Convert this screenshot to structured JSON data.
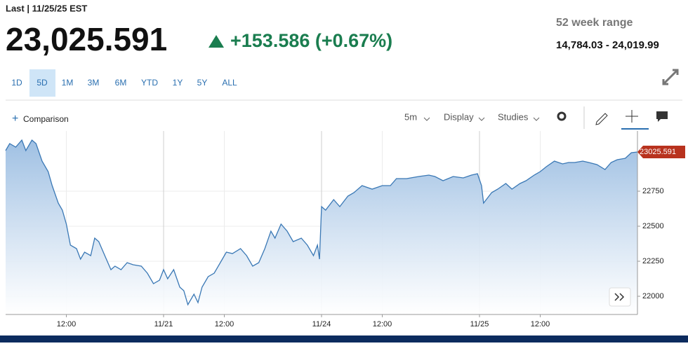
{
  "header": {
    "last": "Last | 11/25/25 EST",
    "price": "23,025.591",
    "change": "+153.586 (+0.67%)",
    "range_title": "52 week range",
    "range": "14,784.03 - 24,019.99"
  },
  "tabs": [
    "1D",
    "5D",
    "1M",
    "3M",
    "6M",
    "YTD",
    "1Y",
    "5Y",
    "ALL"
  ],
  "toolbar": {
    "comparison": "Comparison",
    "interval": "5m",
    "display": "Display",
    "studies": "Studies"
  },
  "price_tag": "23025.591",
  "chart_data": {
    "type": "line",
    "color": "#3a78b5",
    "grid": true,
    "x": [
      0,
      2,
      5,
      8,
      10,
      13,
      15,
      18,
      21,
      23,
      26,
      28,
      30,
      32,
      35,
      37,
      39,
      42,
      44,
      46,
      49,
      52,
      54,
      57,
      60,
      63,
      67,
      70,
      73,
      76,
      78,
      80,
      83,
      86,
      88,
      90,
      93,
      95,
      97,
      100,
      103,
      107,
      109,
      112,
      116,
      119,
      122,
      125,
      128,
      131,
      133,
      136,
      139,
      142,
      146,
      149,
      152,
      154,
      155,
      156,
      158,
      162,
      165,
      169,
      172,
      176,
      181,
      186,
      190,
      193,
      198,
      204,
      209,
      212,
      216,
      221,
      226,
      230,
      233,
      235,
      236,
      240,
      243,
      247,
      250,
      254,
      257,
      261,
      264,
      267,
      271,
      275,
      278,
      281,
      285,
      288,
      292,
      296,
      299,
      302,
      306,
      309,
      312
    ],
    "values": [
      23040,
      23090,
      23065,
      23115,
      23040,
      23115,
      23090,
      22965,
      22890,
      22790,
      22665,
      22615,
      22515,
      22365,
      22340,
      22265,
      22315,
      22290,
      22415,
      22390,
      22290,
      22190,
      22215,
      22190,
      22240,
      22225,
      22215,
      22165,
      22090,
      22115,
      22190,
      22125,
      22190,
      22065,
      22040,
      21940,
      22015,
      21955,
      22065,
      22140,
      22165,
      22265,
      22315,
      22305,
      22340,
      22290,
      22215,
      22240,
      22340,
      22465,
      22415,
      22515,
      22465,
      22390,
      22415,
      22365,
      22290,
      22365,
      22265,
      22640,
      22615,
      22690,
      22640,
      22715,
      22740,
      22790,
      22765,
      22790,
      22790,
      22840,
      22840,
      22855,
      22865,
      22855,
      22825,
      22855,
      22845,
      22865,
      22875,
      22790,
      22665,
      22740,
      22765,
      22805,
      22765,
      22805,
      22825,
      22865,
      22890,
      22925,
      22965,
      22945,
      22955,
      22955,
      22965,
      22955,
      22940,
      22905,
      22955,
      22975,
      22985,
      23025,
      23030
    ],
    "xlim": [
      0,
      312
    ],
    "xticks": [
      {
        "value": 30,
        "label": "12:00"
      },
      {
        "value": 78,
        "label": "11/21"
      },
      {
        "value": 108,
        "label": "12:00"
      },
      {
        "value": 156,
        "label": "11/24"
      },
      {
        "value": 186,
        "label": "12:00"
      },
      {
        "value": 234,
        "label": "11/25"
      },
      {
        "value": 264,
        "label": "12:00"
      }
    ],
    "ylim": [
      21870,
      23180
    ],
    "yticks": [
      22000,
      22250,
      22500,
      22750
    ]
  }
}
